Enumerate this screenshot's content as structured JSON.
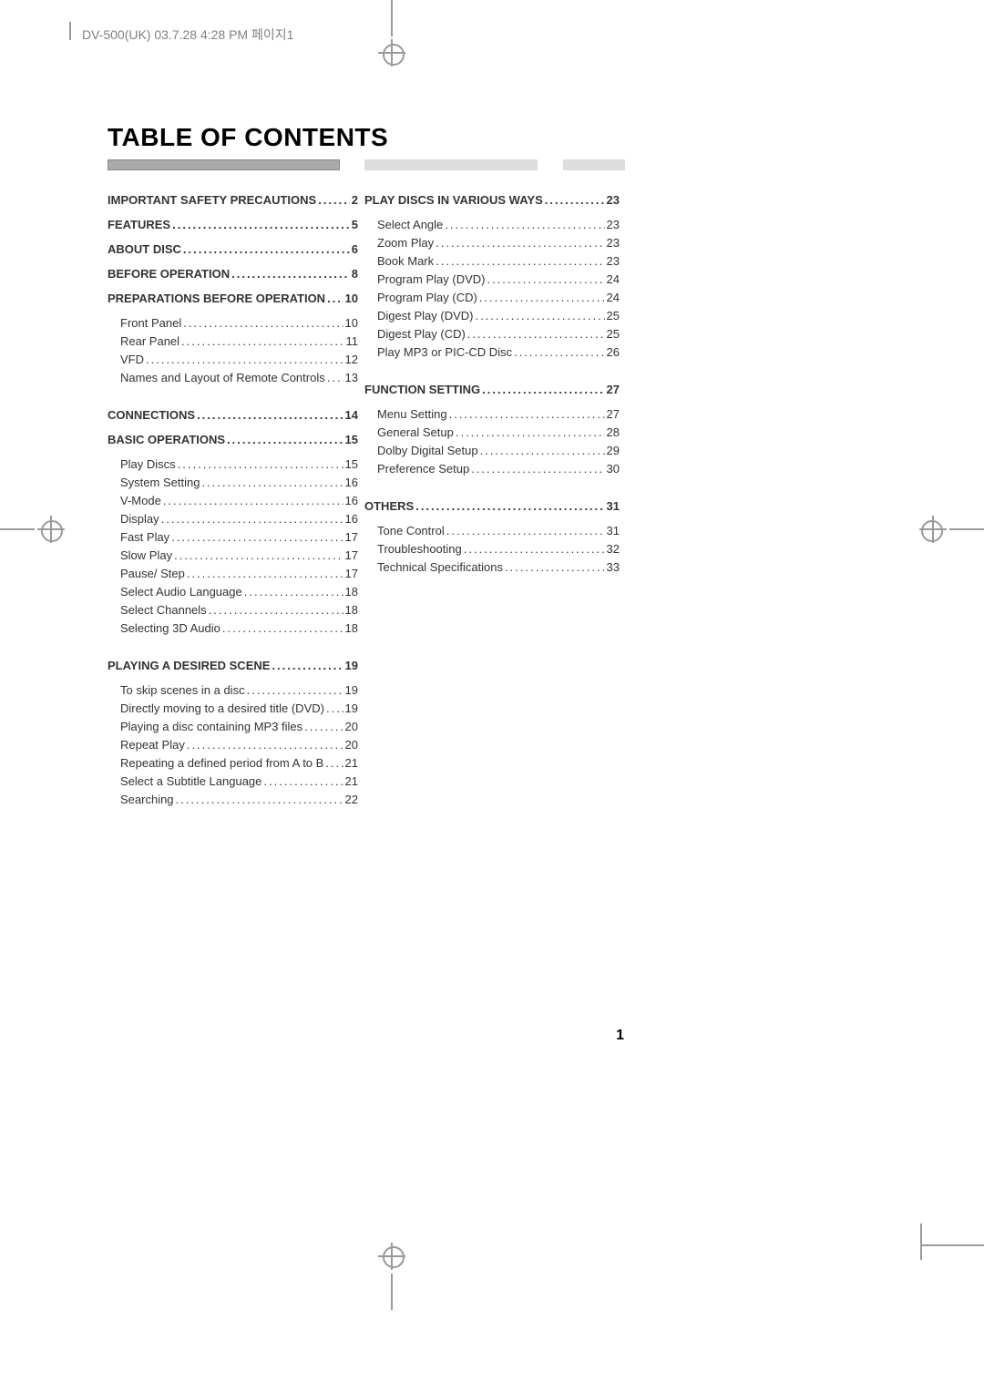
{
  "header_text": "DV-500(UK)  03.7.28 4:28 PM  페이지1",
  "title": "TABLE OF CONTENTS",
  "page_number": "1",
  "left_column": [
    {
      "type": "section",
      "label": "IMPORTANT SAFETY PRECAUTIONS",
      "page": "2"
    },
    {
      "type": "section",
      "label": "FEATURES",
      "page": "5"
    },
    {
      "type": "section",
      "label": "ABOUT DISC",
      "page": "6"
    },
    {
      "type": "section",
      "label": "BEFORE OPERATION",
      "page": "8"
    },
    {
      "type": "section",
      "label": "PREPARATIONS BEFORE OPERATION",
      "page": "10"
    },
    {
      "type": "item",
      "label": "Front Panel",
      "page": "10"
    },
    {
      "type": "item",
      "label": "Rear Panel",
      "page": "11"
    },
    {
      "type": "item",
      "label": "VFD",
      "page": "12"
    },
    {
      "type": "item",
      "label": "Names and Layout of Remote Controls",
      "page": "13"
    },
    {
      "type": "spacer"
    },
    {
      "type": "section",
      "label": "CONNECTIONS",
      "page": "14"
    },
    {
      "type": "section",
      "label": "BASIC OPERATIONS",
      "page": "15"
    },
    {
      "type": "item",
      "label": "Play Discs",
      "page": "15"
    },
    {
      "type": "item",
      "label": "System Setting",
      "page": "16"
    },
    {
      "type": "item",
      "label": "V-Mode",
      "page": "16"
    },
    {
      "type": "item",
      "label": "Display",
      "page": "16"
    },
    {
      "type": "item",
      "label": "Fast Play",
      "page": "17"
    },
    {
      "type": "item",
      "label": "Slow Play",
      "page": "17"
    },
    {
      "type": "item",
      "label": "Pause/ Step",
      "page": "17"
    },
    {
      "type": "item",
      "label": "Select Audio Language",
      "page": "18"
    },
    {
      "type": "item",
      "label": "Select Channels",
      "page": "18"
    },
    {
      "type": "item",
      "label": "Selecting 3D Audio",
      "page": "18"
    },
    {
      "type": "spacer"
    },
    {
      "type": "section",
      "label": "PLAYING A DESIRED SCENE",
      "page": "19"
    },
    {
      "type": "item",
      "label": "To skip scenes in a disc",
      "page": "19"
    },
    {
      "type": "item",
      "label": "Directly moving to a desired title (DVD)",
      "page": "19"
    },
    {
      "type": "item",
      "label": "Playing a disc containing MP3 files",
      "page": "20"
    },
    {
      "type": "item",
      "label": "Repeat Play",
      "page": "20"
    },
    {
      "type": "item",
      "label": "Repeating a defined period from A to B",
      "page": "21"
    },
    {
      "type": "item",
      "label": "Select a Subtitle Language",
      "page": "21"
    },
    {
      "type": "item",
      "label": "Searching",
      "page": "22"
    }
  ],
  "right_column": [
    {
      "type": "section",
      "label": "PLAY DISCS IN VARIOUS WAYS",
      "page": "23"
    },
    {
      "type": "item",
      "label": "Select Angle",
      "page": "23"
    },
    {
      "type": "item",
      "label": "Zoom Play",
      "page": "23"
    },
    {
      "type": "item",
      "label": "Book Mark",
      "page": "23"
    },
    {
      "type": "item",
      "label": "Program Play (DVD)",
      "page": "24"
    },
    {
      "type": "item",
      "label": "Program Play (CD)",
      "page": "24"
    },
    {
      "type": "item",
      "label": "Digest Play (DVD)",
      "page": "25"
    },
    {
      "type": "item",
      "label": "Digest Play (CD)",
      "page": "25"
    },
    {
      "type": "item",
      "label": "Play MP3 or PIC-CD Disc",
      "page": "26"
    },
    {
      "type": "spacer"
    },
    {
      "type": "section",
      "label": "FUNCTION SETTING",
      "page": "27"
    },
    {
      "type": "item",
      "label": "Menu Setting",
      "page": "27"
    },
    {
      "type": "item",
      "label": "General Setup",
      "page": "28"
    },
    {
      "type": "item",
      "label": "Dolby Digital Setup",
      "page": "29"
    },
    {
      "type": "item",
      "label": "Preference Setup",
      "page": "30"
    },
    {
      "type": "spacer"
    },
    {
      "type": "section",
      "label": "OTHERS",
      "page": "31"
    },
    {
      "type": "item",
      "label": "Tone Control",
      "page": "31"
    },
    {
      "type": "item",
      "label": "Troubleshooting",
      "page": "32"
    },
    {
      "type": "item",
      "label": "Technical Specifications",
      "page": "33"
    }
  ]
}
